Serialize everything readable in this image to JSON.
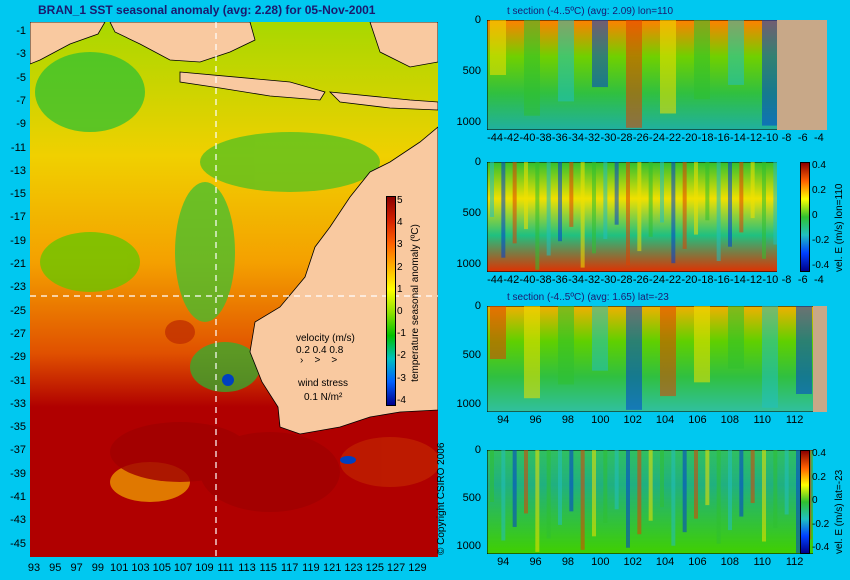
{
  "main_title": "BRAN_1  SST seasonal anomaly (avg: 2.28) for 05-Nov-2001",
  "copyright": "© Copyright CSIRO 2006",
  "colorbar": {
    "label": "temperature seasonal anomaly (ºC)",
    "ticks": [
      "5",
      "4",
      "3",
      "2",
      "1",
      "0",
      "-1",
      "-2",
      "-3",
      "-4"
    ],
    "colors": [
      "#8b0000",
      "#d42000",
      "#ff6000",
      "#ffb000",
      "#ffff00",
      "#90e000",
      "#00c000",
      "#00c0c0",
      "#0060ff",
      "#00008b"
    ]
  },
  "legend": {
    "velocity_label": "velocity (m/s)",
    "velocity_values": "0.2  0.4  0.8",
    "wind_label": "wind stress",
    "wind_value": "0.1 N/m²"
  },
  "map": {
    "lat_ticks": [
      "-1",
      "-3",
      "-5",
      "-7",
      "-9",
      "-11",
      "-13",
      "-15",
      "-17",
      "-19",
      "-21",
      "-23",
      "-25",
      "-27",
      "-29",
      "-31",
      "-33",
      "-35",
      "-37",
      "-39",
      "-41",
      "-43",
      "-45"
    ],
    "lon_ticks": [
      "93",
      "95",
      "97",
      "99",
      "101",
      "103",
      "105",
      "107",
      "109",
      "111",
      "113",
      "115",
      "117",
      "119",
      "121",
      "123",
      "125",
      "127",
      "129"
    ],
    "land_color": "#f9c9a0",
    "ocean_warm": "#d22800",
    "ocean_cool": "#20c020"
  },
  "panels": [
    {
      "title": "t section (-4..5ºC) (avg: 2.09) lon=110",
      "y_ticks": [
        "0",
        "500",
        "1000"
      ],
      "x_ticks": [
        "-44",
        "-42",
        "-40",
        "-38",
        "-36",
        "-34",
        "-32",
        "-30",
        "-28",
        "-26",
        "-24",
        "-22",
        "-20",
        "-18",
        "-16",
        "-14",
        "-12",
        "-10",
        "-8",
        "-6",
        "-4"
      ]
    },
    {
      "title": "",
      "y_ticks": [
        "0",
        "500",
        "1000"
      ],
      "x_ticks": [
        "-44",
        "-42",
        "-40",
        "-38",
        "-36",
        "-34",
        "-32",
        "-30",
        "-28",
        "-26",
        "-24",
        "-22",
        "-20",
        "-18",
        "-16",
        "-14",
        "-12",
        "-10",
        "-8",
        "-6",
        "-4"
      ],
      "cbar_label": "vel. E (m/s) lon=110",
      "cbar_ticks": [
        "0.4",
        "0.2",
        "0",
        "-0.2",
        "-0.4"
      ]
    },
    {
      "title": "t section (-4..5ºC) (avg: 1.65) lat=-23",
      "y_ticks": [
        "0",
        "500",
        "1000"
      ],
      "x_ticks": [
        "94",
        "96",
        "98",
        "100",
        "102",
        "104",
        "106",
        "108",
        "110",
        "112"
      ]
    },
    {
      "title": "",
      "y_ticks": [
        "0",
        "500",
        "1000"
      ],
      "x_ticks": [
        "94",
        "96",
        "98",
        "100",
        "102",
        "104",
        "106",
        "108",
        "110",
        "112"
      ],
      "cbar_label": "vel. E (m/s) lat=-23",
      "cbar_ticks": [
        "0.4",
        "0.2",
        "0",
        "-0.2",
        "-0.4"
      ]
    }
  ],
  "chart_data": [
    {
      "type": "heatmap",
      "title": "BRAN_1  SST seasonal anomaly (avg: 2.28) for 05-Nov-2001",
      "xlabel": "",
      "ylabel": "",
      "xlim": [
        93,
        130
      ],
      "ylim": [
        -45,
        0
      ],
      "colorbar_label": "temperature seasonal anomaly (ºC)",
      "colorbar_range": [
        -4,
        5
      ]
    },
    {
      "type": "heatmap",
      "title": "t section (-4..5ºC) (avg: 2.09) lon=110",
      "xlim": [
        -45,
        -3
      ],
      "ylim": [
        1050,
        0
      ]
    },
    {
      "type": "heatmap",
      "title": "",
      "xlim": [
        -45,
        -3
      ],
      "ylim": [
        1050,
        0
      ],
      "colorbar_label": "vel. E (m/s) lon=110",
      "colorbar_range": [
        -0.4,
        0.45
      ]
    },
    {
      "type": "heatmap",
      "title": "t section (-4..5ºC) (avg: 1.65) lat=-23",
      "xlim": [
        93,
        114
      ],
      "ylim": [
        1050,
        0
      ]
    },
    {
      "type": "heatmap",
      "title": "",
      "xlim": [
        93,
        114
      ],
      "ylim": [
        1050,
        0
      ],
      "colorbar_label": "vel. E (m/s) lat=-23",
      "colorbar_range": [
        -0.4,
        0.45
      ]
    }
  ]
}
